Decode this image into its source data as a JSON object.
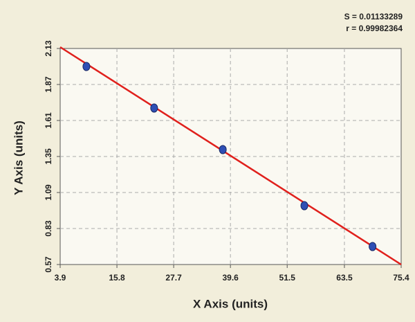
{
  "chart_data": {
    "type": "scatter",
    "annotations": [
      "S = 0.01133289",
      "r = 0.99982364"
    ],
    "x_label": "X Axis (units)",
    "y_label": "Y Axis (units)",
    "x": [
      9.4,
      23.6,
      38.0,
      55.1,
      69.4
    ],
    "values": [
      2.0,
      1.7,
      1.4,
      0.995,
      0.7
    ],
    "color": "#2f4fb5",
    "fit_line": {
      "x": [
        3.9,
        75.4
      ],
      "y": [
        2.14,
        0.57
      ],
      "color": "#e0201c"
    },
    "xlim": [
      3.9,
      75.4
    ],
    "xticks": [
      3.9,
      15.8,
      27.7,
      39.6,
      51.5,
      63.5,
      75.4
    ],
    "ylim": [
      0.57,
      2.13
    ],
    "yticks": [
      0.57,
      0.83,
      1.09,
      1.35,
      1.61,
      1.87,
      2.13
    ],
    "grid": true
  }
}
